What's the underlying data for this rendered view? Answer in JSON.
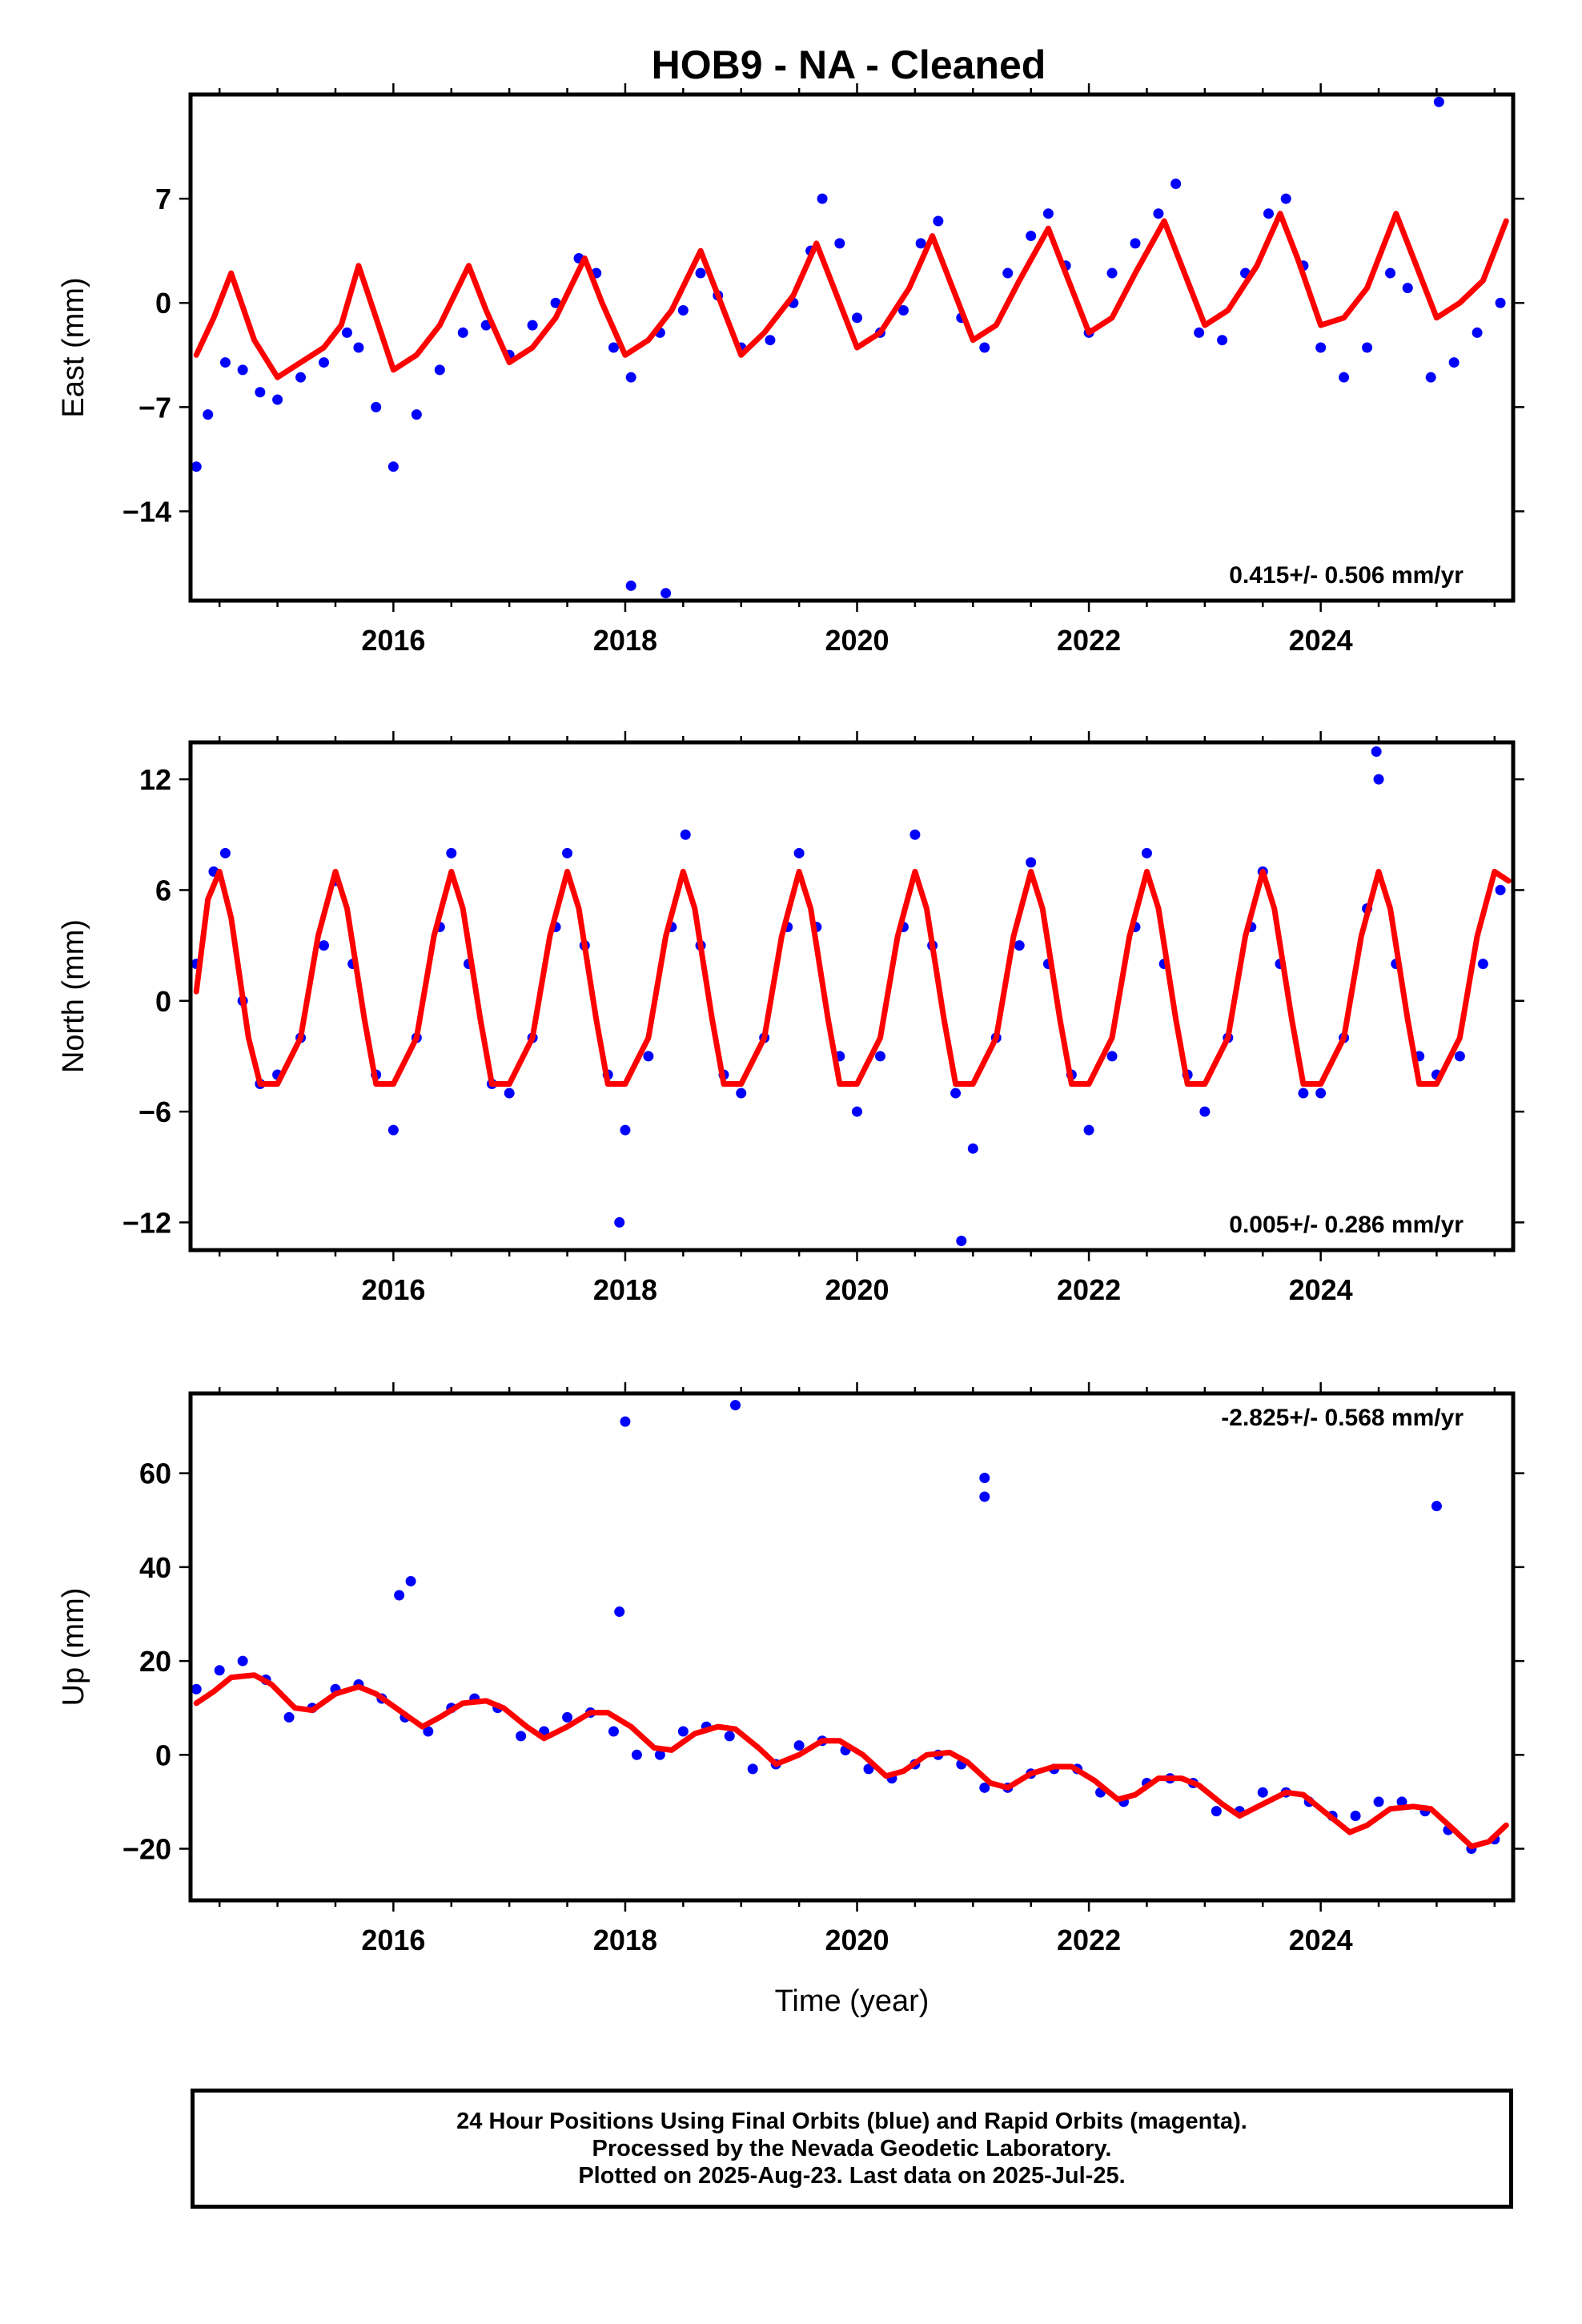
{
  "chart_data": [
    {
      "type": "scatter",
      "panel": "east",
      "title": "HOB9  - NA - Cleaned",
      "ylabel": "East (mm)",
      "xlabel": "",
      "xlim": [
        2014.25,
        2025.66
      ],
      "ylim": [
        -20,
        14
      ],
      "x_ticks": [
        2016,
        2018,
        2020,
        2022,
        2024
      ],
      "y_ticks": [
        7,
        0,
        -7,
        -14
      ],
      "y_tick_labels": [
        "7",
        "0",
        "−7",
        "−14"
      ],
      "rate_text": "0.415+/- 0.506 mm/yr",
      "rate_position": "bottom-right",
      "grid": false,
      "series": [
        {
          "name": "",
          "color": "#0000ff",
          "kind": "scatter",
          "x": [
            2014.3,
            2014.4,
            2014.55,
            2014.7,
            2014.85,
            2015.0,
            2015.2,
            2015.4,
            2015.6,
            2015.7,
            2015.85,
            2016.0,
            2016.2,
            2016.4,
            2016.6,
            2016.8,
            2017.0,
            2017.2,
            2017.4,
            2017.6,
            2017.75,
            2017.9,
            2018.05,
            2018.3,
            2018.5,
            2018.65,
            2018.8,
            2019.0,
            2019.25,
            2019.45,
            2019.6,
            2019.7,
            2019.85,
            2020.0,
            2020.2,
            2020.4,
            2020.55,
            2020.7,
            2020.9,
            2021.1,
            2021.3,
            2021.5,
            2021.65,
            2021.8,
            2022.0,
            2022.2,
            2022.4,
            2022.6,
            2022.75,
            2022.95,
            2023.15,
            2023.35,
            2023.55,
            2023.7,
            2023.85,
            2024.0,
            2024.2,
            2024.4,
            2024.6,
            2024.75,
            2024.95,
            2025.15,
            2025.35,
            2025.55,
            2018.05,
            2018.35,
            2025.02
          ],
          "y": [
            -11.0,
            -7.5,
            -4.0,
            -4.5,
            -6.0,
            -6.5,
            -5.0,
            -4.0,
            -2.0,
            -3.0,
            -7.0,
            -11.0,
            -7.5,
            -4.5,
            -2.0,
            -1.5,
            -3.5,
            -1.5,
            0.0,
            3.0,
            2.0,
            -3.0,
            -5.0,
            -2.0,
            -0.5,
            2.0,
            0.5,
            -3.0,
            -2.5,
            0.0,
            3.5,
            7.0,
            4.0,
            -1.0,
            -2.0,
            -0.5,
            4.0,
            5.5,
            -1.0,
            -3.0,
            2.0,
            4.5,
            6.0,
            2.5,
            -2.0,
            2.0,
            4.0,
            6.0,
            8.0,
            -2.0,
            -2.5,
            2.0,
            6.0,
            7.0,
            2.5,
            -3.0,
            -5.0,
            -3.0,
            2.0,
            1.0,
            -5.0,
            -4.0,
            -2.0,
            0.0,
            -19.0,
            -19.5,
            13.5
          ]
        },
        {
          "name": "",
          "color": "#ff0000",
          "kind": "line",
          "x": [
            2014.3,
            2014.45,
            2014.6,
            2014.8,
            2015.0,
            2015.2,
            2015.4,
            2015.55,
            2015.7,
            2015.85,
            2016.0,
            2016.2,
            2016.4,
            2016.65,
            2016.8,
            2017.0,
            2017.2,
            2017.4,
            2017.65,
            2017.8,
            2018.0,
            2018.2,
            2018.4,
            2018.65,
            2018.8,
            2019.0,
            2019.2,
            2019.45,
            2019.65,
            2019.8,
            2020.0,
            2020.2,
            2020.45,
            2020.65,
            2020.8,
            2021.0,
            2021.2,
            2021.4,
            2021.65,
            2021.8,
            2022.0,
            2022.2,
            2022.4,
            2022.65,
            2022.8,
            2023.0,
            2023.2,
            2023.45,
            2023.65,
            2023.8,
            2024.0,
            2024.2,
            2024.4,
            2024.65,
            2024.8,
            2025.0,
            2025.2,
            2025.4,
            2025.6
          ],
          "y": [
            -3.5,
            -1.0,
            2.0,
            -2.5,
            -5.0,
            -4.0,
            -3.0,
            -1.5,
            2.5,
            -1.0,
            -4.5,
            -3.5,
            -1.5,
            2.5,
            -0.5,
            -4.0,
            -3.0,
            -1.0,
            3.0,
            0.0,
            -3.5,
            -2.5,
            -0.5,
            3.5,
            0.5,
            -3.5,
            -2.0,
            0.5,
            4.0,
            1.0,
            -3.0,
            -2.0,
            1.0,
            4.5,
            1.5,
            -2.5,
            -1.5,
            1.5,
            5.0,
            2.0,
            -2.0,
            -1.0,
            2.0,
            5.5,
            2.5,
            -1.5,
            -0.5,
            2.5,
            6.0,
            3.0,
            -1.5,
            -1.0,
            1.0,
            6.0,
            3.0,
            -1.0,
            0.0,
            1.5,
            5.5
          ]
        }
      ]
    },
    {
      "type": "scatter",
      "panel": "north",
      "title": "",
      "ylabel": "North (mm)",
      "xlabel": "",
      "xlim": [
        2014.25,
        2025.66
      ],
      "ylim": [
        -13.5,
        14
      ],
      "x_ticks": [
        2016,
        2018,
        2020,
        2022,
        2024
      ],
      "y_ticks": [
        12,
        6,
        0,
        -6,
        -12
      ],
      "y_tick_labels": [
        "12",
        "6",
        "0",
        "−6",
        "−12"
      ],
      "rate_text": "0.005+/- 0.286 mm/yr",
      "rate_position": "bottom-right",
      "grid": false,
      "series": [
        {
          "name": "",
          "color": "#0000ff",
          "kind": "scatter",
          "x": [
            2014.3,
            2014.45,
            2014.55,
            2014.7,
            2014.85,
            2015.0,
            2015.2,
            2015.4,
            2015.5,
            2015.65,
            2015.85,
            2016.0,
            2016.2,
            2016.4,
            2016.5,
            2016.65,
            2016.85,
            2017.0,
            2017.2,
            2017.4,
            2017.5,
            2017.65,
            2017.85,
            2018.0,
            2018.2,
            2018.4,
            2018.52,
            2018.65,
            2018.85,
            2019.0,
            2019.2,
            2019.4,
            2019.5,
            2019.65,
            2019.85,
            2020.0,
            2020.2,
            2020.4,
            2020.5,
            2020.65,
            2020.85,
            2021.0,
            2021.2,
            2021.4,
            2021.5,
            2021.65,
            2021.85,
            2022.0,
            2022.2,
            2022.4,
            2022.5,
            2022.65,
            2022.85,
            2023.0,
            2023.2,
            2023.4,
            2023.5,
            2023.65,
            2023.85,
            2024.0,
            2024.2,
            2024.4,
            2024.5,
            2024.65,
            2024.85,
            2025.0,
            2025.2,
            2025.4,
            2025.55,
            2017.95,
            2020.9,
            2024.48
          ],
          "y": [
            2.0,
            7.0,
            8.0,
            0.0,
            -4.5,
            -4.0,
            -2.0,
            3.0,
            6.5,
            2.0,
            -4.0,
            -7.0,
            -2.0,
            4.0,
            8.0,
            2.0,
            -4.5,
            -5.0,
            -2.0,
            4.0,
            8.0,
            3.0,
            -4.0,
            -7.0,
            -3.0,
            4.0,
            9.0,
            3.0,
            -4.0,
            -5.0,
            -2.0,
            4.0,
            8.0,
            4.0,
            -3.0,
            -6.0,
            -3.0,
            4.0,
            9.0,
            3.0,
            -5.0,
            -8.0,
            -2.0,
            3.0,
            7.5,
            2.0,
            -4.0,
            -7.0,
            -3.0,
            4.0,
            8.0,
            2.0,
            -4.0,
            -6.0,
            -2.0,
            4.0,
            7.0,
            2.0,
            -5.0,
            -5.0,
            -2.0,
            5.0,
            12.0,
            2.0,
            -3.0,
            -4.0,
            -3.0,
            2.0,
            6.0,
            -12.0,
            -13.0,
            13.5
          ]
        },
        {
          "name": "",
          "color": "#ff0000",
          "kind": "line",
          "x": [
            2014.3,
            2014.4,
            2014.5,
            2014.6,
            2014.75,
            2014.85,
            2015.0,
            2015.2,
            2015.35,
            2015.5,
            2015.6,
            2015.75,
            2015.85,
            2016.0,
            2016.2,
            2016.35,
            2016.5,
            2016.6,
            2016.75,
            2016.85,
            2017.0,
            2017.2,
            2017.35,
            2017.5,
            2017.6,
            2017.75,
            2017.85,
            2018.0,
            2018.2,
            2018.35,
            2018.5,
            2018.6,
            2018.75,
            2018.85,
            2019.0,
            2019.2,
            2019.35,
            2019.5,
            2019.6,
            2019.75,
            2019.85,
            2020.0,
            2020.2,
            2020.35,
            2020.5,
            2020.6,
            2020.75,
            2020.85,
            2021.0,
            2021.2,
            2021.35,
            2021.5,
            2021.6,
            2021.75,
            2021.85,
            2022.0,
            2022.2,
            2022.35,
            2022.5,
            2022.6,
            2022.75,
            2022.85,
            2023.0,
            2023.2,
            2023.35,
            2023.5,
            2023.6,
            2023.75,
            2023.85,
            2024.0,
            2024.2,
            2024.35,
            2024.5,
            2024.6,
            2024.75,
            2024.85,
            2025.0,
            2025.2,
            2025.35,
            2025.5,
            2025.62
          ],
          "y": [
            0.5,
            5.5,
            7.0,
            4.5,
            -2.0,
            -4.5,
            -4.5,
            -2.0,
            3.5,
            7.0,
            5.0,
            -1.0,
            -4.5,
            -4.5,
            -2.0,
            3.5,
            7.0,
            5.0,
            -1.0,
            -4.5,
            -4.5,
            -2.0,
            3.5,
            7.0,
            5.0,
            -1.0,
            -4.5,
            -4.5,
            -2.0,
            3.5,
            7.0,
            5.0,
            -1.0,
            -4.5,
            -4.5,
            -2.0,
            3.5,
            7.0,
            5.0,
            -1.0,
            -4.5,
            -4.5,
            -2.0,
            3.5,
            7.0,
            5.0,
            -1.0,
            -4.5,
            -4.5,
            -2.0,
            3.5,
            7.0,
            5.0,
            -1.0,
            -4.5,
            -4.5,
            -2.0,
            3.5,
            7.0,
            5.0,
            -1.0,
            -4.5,
            -4.5,
            -2.0,
            3.5,
            7.0,
            5.0,
            -1.0,
            -4.5,
            -4.5,
            -2.0,
            3.5,
            7.0,
            5.0,
            -1.0,
            -4.5,
            -4.5,
            -2.0,
            3.5,
            7.0,
            6.5
          ]
        }
      ]
    },
    {
      "type": "scatter",
      "panel": "up",
      "title": "",
      "ylabel": "Up (mm)",
      "xlabel": "Time (year)",
      "xlim": [
        2014.25,
        2025.66
      ],
      "ylim": [
        -31,
        77
      ],
      "x_ticks": [
        2016,
        2018,
        2020,
        2022,
        2024
      ],
      "y_ticks": [
        60,
        40,
        20,
        0,
        -20
      ],
      "y_tick_labels": [
        "60",
        "40",
        "20",
        "0",
        "−20"
      ],
      "rate_text": "-2.825+/- 0.568 mm/yr",
      "rate_position": "top-right",
      "grid": false,
      "series": [
        {
          "name": "",
          "color": "#0000ff",
          "kind": "scatter",
          "x": [
            2014.3,
            2014.5,
            2014.7,
            2014.9,
            2015.1,
            2015.3,
            2015.5,
            2015.7,
            2015.9,
            2016.1,
            2016.3,
            2016.5,
            2016.7,
            2016.9,
            2017.1,
            2017.3,
            2017.5,
            2017.7,
            2017.9,
            2018.1,
            2018.3,
            2018.5,
            2018.7,
            2018.9,
            2019.1,
            2019.3,
            2019.5,
            2019.7,
            2019.9,
            2020.1,
            2020.3,
            2020.5,
            2020.7,
            2020.9,
            2021.1,
            2021.3,
            2021.5,
            2021.7,
            2021.9,
            2022.1,
            2022.3,
            2022.5,
            2022.7,
            2022.9,
            2023.1,
            2023.3,
            2023.5,
            2023.7,
            2023.9,
            2024.1,
            2024.3,
            2024.5,
            2024.7,
            2024.9,
            2025.1,
            2025.3,
            2025.5,
            2016.05,
            2016.15,
            2017.95,
            2018.0,
            2018.95,
            2021.1,
            2021.1,
            2025.0
          ],
          "y": [
            14.0,
            18.0,
            20.0,
            16.0,
            8.0,
            10.0,
            14.0,
            15.0,
            12.0,
            8.0,
            5.0,
            10.0,
            12.0,
            10.0,
            4.0,
            5.0,
            8.0,
            9.0,
            5.0,
            0.0,
            0.0,
            5.0,
            6.0,
            4.0,
            -3.0,
            -2.0,
            2.0,
            3.0,
            1.0,
            -3.0,
            -5.0,
            -2.0,
            0.0,
            -2.0,
            -7.0,
            -7.0,
            -4.0,
            -3.0,
            -3.0,
            -8.0,
            -10.0,
            -6.0,
            -5.0,
            -6.0,
            -12.0,
            -12.0,
            -8.0,
            -8.0,
            -10.0,
            -13.0,
            -13.0,
            -10.0,
            -10.0,
            -12.0,
            -16.0,
            -20.0,
            -18.0,
            34.0,
            37.0,
            30.5,
            71.0,
            74.5,
            59.0,
            55.0,
            53.0
          ]
        },
        {
          "name": "",
          "color": "#ff0000",
          "kind": "line",
          "x": [
            2014.3,
            2014.45,
            2014.6,
            2014.8,
            2014.95,
            2015.15,
            2015.3,
            2015.5,
            2015.7,
            2015.85,
            2016.05,
            2016.25,
            2016.4,
            2016.6,
            2016.8,
            2016.95,
            2017.15,
            2017.3,
            2017.5,
            2017.7,
            2017.85,
            2018.05,
            2018.25,
            2018.4,
            2018.6,
            2018.8,
            2018.95,
            2019.15,
            2019.3,
            2019.5,
            2019.7,
            2019.85,
            2020.05,
            2020.25,
            2020.4,
            2020.6,
            2020.8,
            2020.95,
            2021.15,
            2021.3,
            2021.5,
            2021.7,
            2021.85,
            2022.05,
            2022.25,
            2022.4,
            2022.6,
            2022.8,
            2022.95,
            2023.15,
            2023.3,
            2023.5,
            2023.7,
            2023.85,
            2024.05,
            2024.25,
            2024.4,
            2024.6,
            2024.8,
            2024.95,
            2025.15,
            2025.3,
            2025.45,
            2025.6
          ],
          "y": [
            11.0,
            13.5,
            16.5,
            17.0,
            15.0,
            10.0,
            9.5,
            13.0,
            14.5,
            13.0,
            9.5,
            6.0,
            8.0,
            11.0,
            11.5,
            10.0,
            6.0,
            3.5,
            6.0,
            9.0,
            9.0,
            6.0,
            1.5,
            1.0,
            4.5,
            6.0,
            5.5,
            1.5,
            -2.0,
            0.0,
            3.0,
            3.0,
            0.0,
            -4.5,
            -3.5,
            0.0,
            0.5,
            -1.5,
            -6.0,
            -7.0,
            -4.0,
            -2.5,
            -2.5,
            -5.5,
            -9.5,
            -8.5,
            -5.0,
            -5.0,
            -6.5,
            -10.5,
            -13.0,
            -10.5,
            -8.0,
            -8.5,
            -12.5,
            -16.5,
            -15.0,
            -11.5,
            -11.0,
            -11.5,
            -16.0,
            -19.5,
            -18.5,
            -15.0
          ]
        }
      ]
    }
  ],
  "footer": {
    "line1": "24 Hour Positions Using Final Orbits (blue) and Rapid Orbits (magenta).",
    "line2": "Processed by the Nevada Geodetic Laboratory.",
    "line3": "Plotted on 2025-Aug-23. Last data on 2025-Jul-25."
  }
}
